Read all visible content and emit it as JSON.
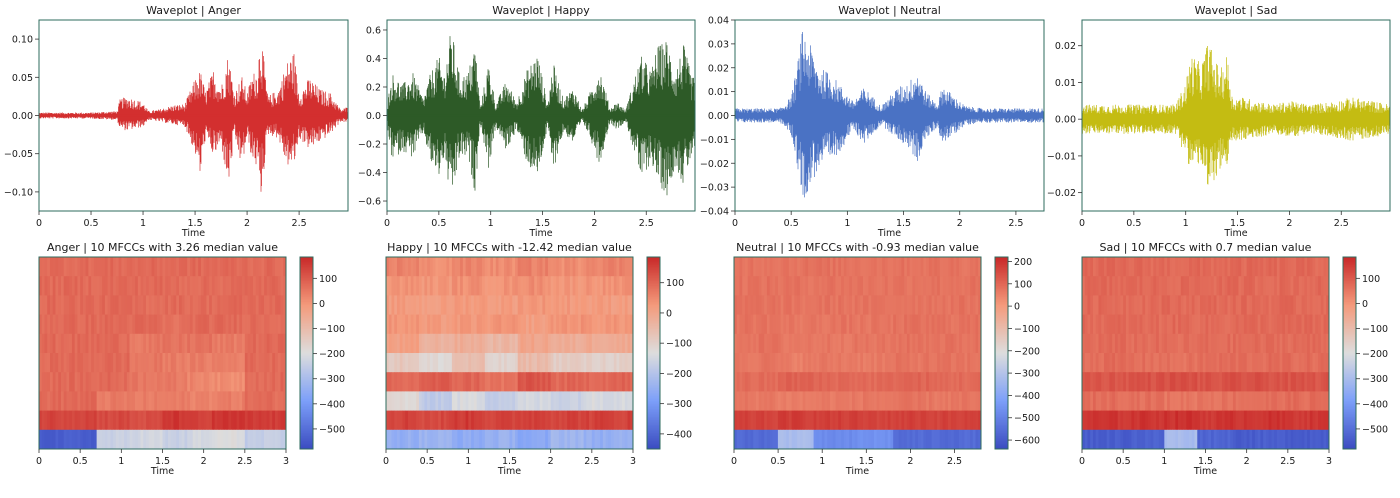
{
  "colors": {
    "frame": "#2e6b5e",
    "anger": "#d32f2f",
    "happy": "#2d5a27",
    "neutral": "#4a72c4",
    "sad": "#c4bc12",
    "tick_text": "#1f4e4e"
  },
  "chart_data": [
    {
      "type": "line",
      "id": "wave-anger",
      "title": "Waveplot | Anger",
      "xlabel": "Time",
      "ylabel": "",
      "xlim": [
        0,
        2.97
      ],
      "ylim": [
        -0.125,
        0.125
      ],
      "xticks": [
        0,
        0.5,
        1,
        1.5,
        2,
        2.5
      ],
      "xtick_labels": [
        "0",
        "0.5",
        "1",
        "1.5",
        "2",
        "2.5"
      ],
      "yticks": [
        -0.1,
        -0.05,
        0.0,
        0.05,
        0.1
      ],
      "ytick_labels": [
        "−0.10",
        "−0.05",
        "0.00",
        "0.05",
        "0.10"
      ],
      "color": "anger",
      "envelope": {
        "x": [
          0,
          0.5,
          0.75,
          0.78,
          0.85,
          1.0,
          1.05,
          1.15,
          1.3,
          1.4,
          1.5,
          1.55,
          1.6,
          1.68,
          1.75,
          1.82,
          1.88,
          1.95,
          2.0,
          2.05,
          2.1,
          2.13,
          2.2,
          2.3,
          2.38,
          2.45,
          2.5,
          2.6,
          2.7,
          2.8,
          2.9,
          2.97
        ],
        "upper": [
          0.004,
          0.004,
          0.006,
          0.022,
          0.025,
          0.018,
          0.006,
          0.008,
          0.014,
          0.015,
          0.048,
          0.06,
          0.032,
          0.062,
          0.038,
          0.083,
          0.03,
          0.052,
          0.03,
          0.055,
          0.062,
          0.113,
          0.025,
          0.035,
          0.07,
          0.085,
          0.03,
          0.05,
          0.035,
          0.03,
          0.008,
          0.012
        ],
        "lower": [
          -0.004,
          -0.004,
          -0.006,
          -0.018,
          -0.02,
          -0.015,
          -0.006,
          -0.008,
          -0.012,
          -0.014,
          -0.05,
          -0.082,
          -0.03,
          -0.055,
          -0.038,
          -0.096,
          -0.03,
          -0.07,
          -0.03,
          -0.06,
          -0.07,
          -0.113,
          -0.025,
          -0.03,
          -0.066,
          -0.068,
          -0.03,
          -0.045,
          -0.035,
          -0.025,
          -0.008,
          -0.01
        ]
      }
    },
    {
      "type": "line",
      "id": "wave-happy",
      "title": "Waveplot | Happy",
      "xlabel": "Time",
      "ylabel": "",
      "xlim": [
        0,
        2.97
      ],
      "ylim": [
        -0.67,
        0.67
      ],
      "xticks": [
        0,
        0.5,
        1,
        1.5,
        2,
        2.5
      ],
      "xtick_labels": [
        "0",
        "0.5",
        "1",
        "1.5",
        "2",
        "2.5"
      ],
      "yticks": [
        -0.6,
        -0.4,
        -0.2,
        0.0,
        0.2,
        0.4,
        0.6
      ],
      "ytick_labels": [
        "−0.6",
        "−0.4",
        "−0.2",
        "0.0",
        "0.2",
        "0.4",
        "0.6"
      ],
      "color": "happy",
      "envelope": {
        "x": [
          0,
          0.05,
          0.15,
          0.25,
          0.35,
          0.42,
          0.5,
          0.55,
          0.62,
          0.7,
          0.78,
          0.85,
          0.9,
          0.98,
          1.05,
          1.15,
          1.25,
          1.35,
          1.45,
          1.55,
          1.6,
          1.7,
          1.8,
          1.88,
          1.95,
          2.05,
          2.15,
          2.22,
          2.3,
          2.4,
          2.45,
          2.55,
          2.6,
          2.7,
          2.78,
          2.86,
          2.93,
          2.97
        ],
        "upper": [
          0.08,
          0.3,
          0.22,
          0.3,
          0.12,
          0.3,
          0.42,
          0.3,
          0.62,
          0.28,
          0.3,
          0.52,
          0.06,
          0.38,
          0.08,
          0.25,
          0.1,
          0.32,
          0.45,
          0.08,
          0.38,
          0.12,
          0.2,
          0.04,
          0.15,
          0.35,
          0.05,
          0.1,
          0.04,
          0.3,
          0.42,
          0.32,
          0.48,
          0.54,
          0.32,
          0.5,
          0.3,
          0.25
        ],
        "lower": [
          -0.08,
          -0.32,
          -0.25,
          -0.3,
          -0.12,
          -0.34,
          -0.44,
          -0.3,
          -0.62,
          -0.3,
          -0.3,
          -0.55,
          -0.06,
          -0.38,
          -0.08,
          -0.25,
          -0.1,
          -0.34,
          -0.45,
          -0.08,
          -0.4,
          -0.12,
          -0.2,
          -0.04,
          -0.14,
          -0.35,
          -0.05,
          -0.1,
          -0.04,
          -0.3,
          -0.47,
          -0.32,
          -0.46,
          -0.57,
          -0.35,
          -0.5,
          -0.3,
          -0.25
        ]
      }
    },
    {
      "type": "line",
      "id": "wave-neutral",
      "title": "Waveplot | Neutral",
      "xlabel": "Time",
      "ylabel": "",
      "xlim": [
        0,
        2.75
      ],
      "ylim": [
        -0.04,
        0.04
      ],
      "xticks": [
        0,
        0.5,
        1,
        1.5,
        2,
        2.5
      ],
      "xtick_labels": [
        "0",
        "0.5",
        "1",
        "1.5",
        "2",
        "2.5"
      ],
      "yticks": [
        -0.04,
        -0.03,
        -0.02,
        -0.01,
        0.0,
        0.01,
        0.02,
        0.03,
        0.04
      ],
      "ytick_labels": [
        "−0.04",
        "−0.03",
        "−0.02",
        "−0.01",
        "0.00",
        "0.01",
        "0.02",
        "0.03",
        "0.04"
      ],
      "color": "neutral",
      "envelope": {
        "x": [
          0,
          0.4,
          0.5,
          0.55,
          0.6,
          0.65,
          0.75,
          0.85,
          0.95,
          1.05,
          1.15,
          1.3,
          1.45,
          1.55,
          1.62,
          1.7,
          1.8,
          1.85,
          1.95,
          2.05,
          2.2,
          2.4,
          2.6,
          2.75
        ],
        "upper": [
          0.003,
          0.003,
          0.008,
          0.02,
          0.036,
          0.032,
          0.02,
          0.018,
          0.012,
          0.006,
          0.012,
          0.004,
          0.012,
          0.014,
          0.02,
          0.01,
          0.005,
          0.013,
          0.008,
          0.004,
          0.003,
          0.003,
          0.003,
          0.003
        ],
        "lower": [
          -0.003,
          -0.003,
          -0.008,
          -0.02,
          -0.036,
          -0.032,
          -0.022,
          -0.02,
          -0.014,
          -0.006,
          -0.012,
          -0.004,
          -0.01,
          -0.014,
          -0.02,
          -0.01,
          -0.005,
          -0.012,
          -0.008,
          -0.004,
          -0.003,
          -0.003,
          -0.003,
          -0.003
        ]
      }
    },
    {
      "type": "line",
      "id": "wave-sad",
      "title": "Waveplot | Sad",
      "xlabel": "Time",
      "ylabel": "",
      "xlim": [
        0,
        2.97
      ],
      "ylim": [
        -0.025,
        0.027
      ],
      "xticks": [
        0,
        0.5,
        1,
        1.5,
        2,
        2.5
      ],
      "xtick_labels": [
        "0",
        "0.5",
        "1",
        "1.5",
        "2",
        "2.5"
      ],
      "yticks": [
        -0.02,
        -0.01,
        0.0,
        0.01,
        0.02
      ],
      "ytick_labels": [
        "−0.02",
        "−0.01",
        "0.00",
        "0.01",
        "0.02"
      ],
      "color": "sad",
      "envelope": {
        "x": [
          0,
          0.3,
          0.6,
          0.9,
          1.0,
          1.05,
          1.15,
          1.22,
          1.28,
          1.35,
          1.4,
          1.45,
          1.55,
          1.7,
          1.85,
          2.0,
          2.2,
          2.45,
          2.6,
          2.8,
          2.97
        ],
        "upper": [
          0.004,
          0.004,
          0.004,
          0.004,
          0.01,
          0.018,
          0.015,
          0.022,
          0.016,
          0.014,
          0.018,
          0.006,
          0.006,
          0.005,
          0.004,
          0.005,
          0.004,
          0.005,
          0.006,
          0.005,
          0.004
        ],
        "lower": [
          -0.004,
          -0.004,
          -0.004,
          -0.004,
          -0.01,
          -0.014,
          -0.012,
          -0.023,
          -0.016,
          -0.014,
          -0.015,
          -0.006,
          -0.006,
          -0.005,
          -0.004,
          -0.005,
          -0.004,
          -0.005,
          -0.006,
          -0.005,
          -0.004
        ]
      }
    },
    {
      "type": "heatmap",
      "id": "mfcc-anger",
      "title": "Anger | 10 MFCCs with 3.26 median value",
      "xlabel": "Time",
      "xlim": [
        0,
        3
      ],
      "xticks": [
        0,
        0.5,
        1,
        1.5,
        2,
        2.5,
        3
      ],
      "xtick_labels": [
        "0",
        "0.5",
        "1",
        "1.5",
        "2",
        "2.5",
        "3"
      ],
      "clim": [
        -580,
        185
      ],
      "colorbar_ticks": [
        100,
        0,
        -100,
        -200,
        -300,
        -400,
        -500
      ],
      "colorbar_tick_labels": [
        "100",
        "0",
        "−100",
        "−200",
        "−300",
        "−400",
        "−500"
      ],
      "time_segments": [
        0,
        0.7,
        1.1,
        1.5,
        1.8,
        2.1,
        2.5,
        3.0
      ],
      "rows": [
        [
          75,
          75,
          75,
          75,
          75,
          75,
          75
        ],
        [
          75,
          75,
          75,
          72,
          72,
          72,
          75
        ],
        [
          75,
          75,
          70,
          75,
          72,
          75,
          75
        ],
        [
          75,
          75,
          75,
          60,
          75,
          75,
          75
        ],
        [
          75,
          75,
          50,
          55,
          60,
          45,
          75
        ],
        [
          75,
          75,
          50,
          45,
          40,
          40,
          75
        ],
        [
          75,
          75,
          55,
          45,
          30,
          15,
          75
        ],
        [
          75,
          45,
          40,
          40,
          35,
          40,
          70
        ],
        [
          140,
          130,
          120,
          160,
          140,
          160,
          150
        ],
        [
          -540,
          -240,
          -220,
          -240,
          -220,
          -200,
          -250
        ]
      ]
    },
    {
      "type": "heatmap",
      "id": "mfcc-happy",
      "title": "Happy | 10 MFCCs with -12.42 median value",
      "xlabel": "Time",
      "xlim": [
        0,
        3
      ],
      "xticks": [
        0,
        0.5,
        1,
        1.5,
        2,
        2.5,
        3
      ],
      "xtick_labels": [
        "0",
        "0.5",
        "1",
        "1.5",
        "2",
        "2.5",
        "3"
      ],
      "clim": [
        -450,
        185
      ],
      "colorbar_ticks": [
        100,
        0,
        -100,
        -200,
        -300,
        -400
      ],
      "colorbar_tick_labels": [
        "100",
        "0",
        "−100",
        "−200",
        "−300",
        "−400"
      ],
      "time_segments": [
        0,
        0.4,
        0.8,
        1.2,
        1.6,
        2.0,
        2.4,
        3.0
      ],
      "rows": [
        [
          60,
          40,
          55,
          45,
          60,
          45,
          60
        ],
        [
          35,
          30,
          40,
          35,
          45,
          30,
          35
        ],
        [
          20,
          15,
          25,
          20,
          30,
          25,
          20
        ],
        [
          30,
          20,
          25,
          30,
          15,
          35,
          30
        ],
        [
          10,
          -30,
          -20,
          -40,
          0,
          -20,
          -10
        ],
        [
          -80,
          -120,
          -60,
          -110,
          -50,
          -90,
          -100
        ],
        [
          90,
          110,
          100,
          80,
          120,
          95,
          100
        ],
        [
          -120,
          -180,
          -140,
          -170,
          -150,
          -160,
          -140
        ],
        [
          150,
          140,
          160,
          145,
          155,
          150,
          150
        ],
        [
          -250,
          -240,
          -260,
          -245,
          -270,
          -230,
          -250
        ]
      ]
    },
    {
      "type": "heatmap",
      "id": "mfcc-neutral",
      "title": "Neutral | 10 MFCCs with -0.93 median value",
      "xlabel": "Time",
      "xlim": [
        0,
        2.8
      ],
      "xticks": [
        0,
        0.5,
        1,
        1.5,
        2,
        2.5
      ],
      "xtick_labels": [
        "0",
        "0.5",
        "1",
        "1.5",
        "2",
        "2.5"
      ],
      "clim": [
        -640,
        220
      ],
      "colorbar_ticks": [
        200,
        100,
        0,
        -100,
        -200,
        -300,
        -400,
        -500,
        -600
      ],
      "colorbar_tick_labels": [
        "200",
        "100",
        "0",
        "−100",
        "−200",
        "−300",
        "−400",
        "−500",
        "−600"
      ],
      "time_segments": [
        0,
        0.5,
        0.9,
        1.4,
        1.8,
        2.2,
        2.8
      ],
      "rows": [
        [
          80,
          80,
          80,
          80,
          80,
          80
        ],
        [
          80,
          78,
          80,
          78,
          80,
          80
        ],
        [
          80,
          75,
          78,
          75,
          80,
          80
        ],
        [
          80,
          70,
          75,
          72,
          80,
          80
        ],
        [
          80,
          70,
          72,
          72,
          80,
          80
        ],
        [
          75,
          60,
          68,
          65,
          75,
          75
        ],
        [
          90,
          110,
          100,
          95,
          105,
          95
        ],
        [
          70,
          60,
          65,
          70,
          72,
          70
        ],
        [
          170,
          180,
          175,
          170,
          175,
          170
        ],
        [
          -560,
          -320,
          -480,
          -460,
          -560,
          -560
        ]
      ]
    },
    {
      "type": "heatmap",
      "id": "mfcc-sad",
      "title": "Sad | 10 MFCCs with 0.7 median value",
      "xlabel": "Time",
      "xlim": [
        0,
        3
      ],
      "xticks": [
        0,
        0.5,
        1,
        1.5,
        2,
        2.5,
        3
      ],
      "xtick_labels": [
        "0",
        "0.5",
        "1",
        "1.5",
        "2",
        "2.5",
        "3"
      ],
      "clim": [
        -580,
        185
      ],
      "colorbar_ticks": [
        100,
        0,
        -100,
        -200,
        -300,
        -400,
        -500
      ],
      "colorbar_tick_labels": [
        "100",
        "0",
        "−100",
        "−200",
        "−300",
        "−400",
        "−500"
      ],
      "time_segments": [
        0,
        0.6,
        1.0,
        1.4,
        1.8,
        2.4,
        3.0
      ],
      "rows": [
        [
          75,
          75,
          75,
          75,
          75,
          75
        ],
        [
          75,
          75,
          75,
          75,
          75,
          75
        ],
        [
          75,
          75,
          75,
          75,
          75,
          75
        ],
        [
          75,
          72,
          75,
          72,
          75,
          75
        ],
        [
          72,
          70,
          65,
          70,
          70,
          72
        ],
        [
          70,
          65,
          60,
          68,
          70,
          70
        ],
        [
          110,
          115,
          120,
          110,
          115,
          110
        ],
        [
          70,
          65,
          55,
          60,
          65,
          70
        ],
        [
          160,
          165,
          170,
          160,
          165,
          160
        ],
        [
          -540,
          -530,
          -300,
          -520,
          -540,
          -540
        ]
      ]
    }
  ]
}
